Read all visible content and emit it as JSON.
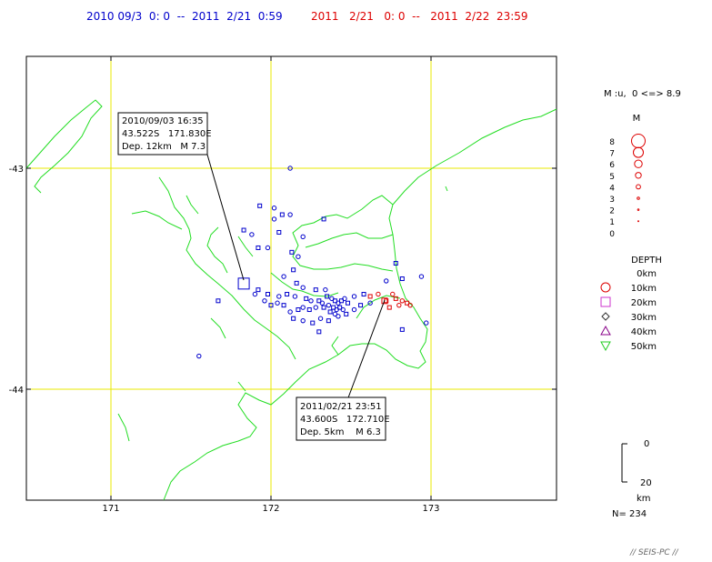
{
  "header": {
    "range_blue": "2010 09/3  0: 0  --  2011  2/21  0:59",
    "range_red": "2011   2/21   0: 0  --   2011  2/22  23:59",
    "color_blue": "#0000cc",
    "color_red": "#dd0000"
  },
  "map": {
    "lat_labels": [
      "-43",
      "-44"
    ],
    "lon_labels": [
      "171",
      "172",
      "173"
    ],
    "grid_color": "#e8e800",
    "coast_color": "#22dd22",
    "callout_1": {
      "line1": "2010/09/03 16:35",
      "line2": "43.522S   171.830E",
      "line3": "Dep. 12km   M 7.3"
    },
    "callout_2": {
      "line1": "2011/02/21 23:51",
      "line2": "43.600S   172.710E",
      "line3": "Dep. 5km    M 6.3"
    }
  },
  "legend": {
    "mag_range": "M :u,  0 <=> 8.9",
    "mag_title": "M",
    "magnitudes": [
      "8",
      "7",
      "6",
      "5",
      "4",
      "3",
      "2",
      "1",
      "0"
    ],
    "depth_title": "DEPTH",
    "depths": [
      "0km",
      "10km",
      "20km",
      "30km",
      "40km",
      "50km"
    ],
    "depth_colors": [
      "#dd0000",
      "#dd0000",
      "#cc33cc",
      "#333333",
      "#880088",
      "#22cc22"
    ],
    "depth_icons": [
      "circle-icon",
      "circle-icon",
      "square-icon",
      "diamond-icon",
      "triangle-icon",
      "inverted-triangle-icon"
    ],
    "scale_top": "0",
    "scale_bottom": "20",
    "scale_unit": "km",
    "count": "N= 234"
  },
  "footer": {
    "credit": "// SEIS-PC //"
  },
  "chart_data": {
    "type": "scatter",
    "title": "",
    "xlabel": "",
    "ylabel": "",
    "xlim": [
      170.5,
      173.8
    ],
    "ylim": [
      -44.5,
      -42.5
    ],
    "mainshocks": [
      {
        "time": "2010/09/03 16:35",
        "lat": -43.522,
        "lon": 171.83,
        "depth_km": 12,
        "mag": 7.3
      },
      {
        "time": "2011/02/21 23:51",
        "lat": -43.6,
        "lon": 172.71,
        "depth_km": 5,
        "mag": 6.3
      }
    ],
    "series": [
      {
        "name": "2010 09/3 0:0 -- 2011 2/21 0:59",
        "color": "#0000cc",
        "points": [
          {
            "lon": 172.12,
            "lat": -43.0
          },
          {
            "lon": 171.93,
            "lat": -43.17
          },
          {
            "lon": 172.02,
            "lat": -43.18
          },
          {
            "lon": 172.07,
            "lat": -43.21
          },
          {
            "lon": 172.12,
            "lat": -43.21
          },
          {
            "lon": 172.33,
            "lat": -43.23
          },
          {
            "lon": 172.02,
            "lat": -43.23
          },
          {
            "lon": 171.83,
            "lat": -43.28
          },
          {
            "lon": 171.88,
            "lat": -43.3
          },
          {
            "lon": 172.05,
            "lat": -43.29
          },
          {
            "lon": 172.2,
            "lat": -43.31
          },
          {
            "lon": 171.92,
            "lat": -43.36
          },
          {
            "lon": 171.98,
            "lat": -43.36
          },
          {
            "lon": 172.13,
            "lat": -43.38
          },
          {
            "lon": 172.17,
            "lat": -43.4
          },
          {
            "lon": 172.78,
            "lat": -43.43
          },
          {
            "lon": 172.94,
            "lat": -43.49
          },
          {
            "lon": 172.82,
            "lat": -43.5
          },
          {
            "lon": 172.72,
            "lat": -43.51
          },
          {
            "lon": 172.14,
            "lat": -43.46
          },
          {
            "lon": 172.08,
            "lat": -43.49
          },
          {
            "lon": 172.16,
            "lat": -43.52
          },
          {
            "lon": 172.2,
            "lat": -43.54
          },
          {
            "lon": 172.28,
            "lat": -43.55
          },
          {
            "lon": 172.34,
            "lat": -43.55
          },
          {
            "lon": 171.92,
            "lat": -43.55
          },
          {
            "lon": 171.9,
            "lat": -43.57
          },
          {
            "lon": 171.98,
            "lat": -43.57
          },
          {
            "lon": 172.05,
            "lat": -43.58
          },
          {
            "lon": 172.1,
            "lat": -43.57
          },
          {
            "lon": 172.15,
            "lat": -43.58
          },
          {
            "lon": 172.22,
            "lat": -43.59
          },
          {
            "lon": 172.25,
            "lat": -43.6
          },
          {
            "lon": 172.3,
            "lat": -43.6
          },
          {
            "lon": 172.32,
            "lat": -43.61
          },
          {
            "lon": 172.35,
            "lat": -43.58
          },
          {
            "lon": 172.38,
            "lat": -43.59
          },
          {
            "lon": 172.4,
            "lat": -43.6
          },
          {
            "lon": 172.42,
            "lat": -43.61
          },
          {
            "lon": 172.44,
            "lat": -43.6
          },
          {
            "lon": 172.46,
            "lat": -43.59
          },
          {
            "lon": 172.48,
            "lat": -43.61
          },
          {
            "lon": 172.36,
            "lat": -43.62
          },
          {
            "lon": 172.39,
            "lat": -43.63
          },
          {
            "lon": 172.41,
            "lat": -43.64
          },
          {
            "lon": 172.43,
            "lat": -43.63
          },
          {
            "lon": 172.45,
            "lat": -43.64
          },
          {
            "lon": 172.37,
            "lat": -43.65
          },
          {
            "lon": 172.4,
            "lat": -43.66
          },
          {
            "lon": 172.33,
            "lat": -43.63
          },
          {
            "lon": 172.28,
            "lat": -43.63
          },
          {
            "lon": 172.24,
            "lat": -43.64
          },
          {
            "lon": 172.2,
            "lat": -43.63
          },
          {
            "lon": 172.17,
            "lat": -43.64
          },
          {
            "lon": 172.12,
            "lat": -43.65
          },
          {
            "lon": 172.08,
            "lat": -43.62
          },
          {
            "lon": 172.04,
            "lat": -43.61
          },
          {
            "lon": 172.0,
            "lat": -43.62
          },
          {
            "lon": 171.96,
            "lat": -43.6
          },
          {
            "lon": 172.14,
            "lat": -43.68
          },
          {
            "lon": 172.2,
            "lat": -43.69
          },
          {
            "lon": 172.26,
            "lat": -43.7
          },
          {
            "lon": 172.31,
            "lat": -43.68
          },
          {
            "lon": 172.36,
            "lat": -43.69
          },
          {
            "lon": 172.42,
            "lat": -43.67
          },
          {
            "lon": 172.47,
            "lat": -43.66
          },
          {
            "lon": 172.52,
            "lat": -43.64
          },
          {
            "lon": 172.56,
            "lat": -43.62
          },
          {
            "lon": 172.52,
            "lat": -43.58
          },
          {
            "lon": 172.58,
            "lat": -43.57
          },
          {
            "lon": 172.62,
            "lat": -43.61
          },
          {
            "lon": 172.3,
            "lat": -43.74
          },
          {
            "lon": 172.97,
            "lat": -43.7
          },
          {
            "lon": 172.82,
            "lat": -43.73
          },
          {
            "lon": 171.55,
            "lat": -43.85
          },
          {
            "lon": 171.67,
            "lat": -43.6
          }
        ]
      },
      {
        "name": "2011 2/21 0:0 -- 2011 2/22 23:59",
        "color": "#dd0000",
        "points": [
          {
            "lon": 172.62,
            "lat": -43.58
          },
          {
            "lon": 172.67,
            "lat": -43.57
          },
          {
            "lon": 172.72,
            "lat": -43.6
          },
          {
            "lon": 172.76,
            "lat": -43.57
          },
          {
            "lon": 172.78,
            "lat": -43.59
          },
          {
            "lon": 172.82,
            "lat": -43.6
          },
          {
            "lon": 172.85,
            "lat": -43.61
          },
          {
            "lon": 172.87,
            "lat": -43.62
          },
          {
            "lon": 172.74,
            "lat": -43.63
          },
          {
            "lon": 172.8,
            "lat": -43.62
          }
        ]
      }
    ]
  }
}
